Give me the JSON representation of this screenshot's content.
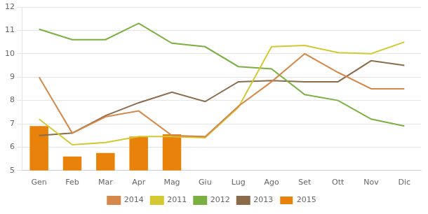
{
  "chart_data": {
    "type": "bar",
    "categories": [
      "Gen",
      "Feb",
      "Mar",
      "Apr",
      "Mag",
      "Giu",
      "Lug",
      "Ago",
      "Set",
      "Ott",
      "Nov",
      "Dic"
    ],
    "series": [
      {
        "name": "2015",
        "type": "bar",
        "color": "#E8820A",
        "values": [
          6.9,
          5.6,
          5.75,
          6.45,
          6.55,
          null,
          null,
          null,
          null,
          null,
          null,
          null
        ]
      },
      {
        "name": "2014",
        "type": "line",
        "color": "#D4884A",
        "values": [
          9.0,
          6.6,
          7.3,
          7.55,
          6.5,
          6.45,
          7.75,
          8.8,
          10.0,
          9.2,
          8.5,
          8.5
        ]
      },
      {
        "name": "2011",
        "type": "line",
        "color": "#D4C832",
        "values": [
          7.2,
          6.1,
          6.2,
          6.45,
          6.45,
          6.4,
          7.7,
          10.3,
          10.35,
          10.05,
          10.0,
          10.5
        ]
      },
      {
        "name": "2012",
        "type": "line",
        "color": "#7AB040",
        "values": [
          11.05,
          10.6,
          10.6,
          11.3,
          10.45,
          10.3,
          9.45,
          9.35,
          8.25,
          8.0,
          7.2,
          6.9
        ]
      },
      {
        "name": "2013",
        "type": "line",
        "color": "#8B6B4A",
        "values": [
          6.5,
          6.6,
          7.35,
          7.9,
          8.35,
          7.95,
          8.8,
          8.85,
          8.8,
          8.8,
          9.7,
          9.5
        ]
      }
    ],
    "ylim": [
      5,
      12
    ],
    "yticks": [
      5,
      6,
      7,
      8,
      9,
      10,
      11,
      12
    ],
    "grid": true,
    "legend": "bottom"
  }
}
